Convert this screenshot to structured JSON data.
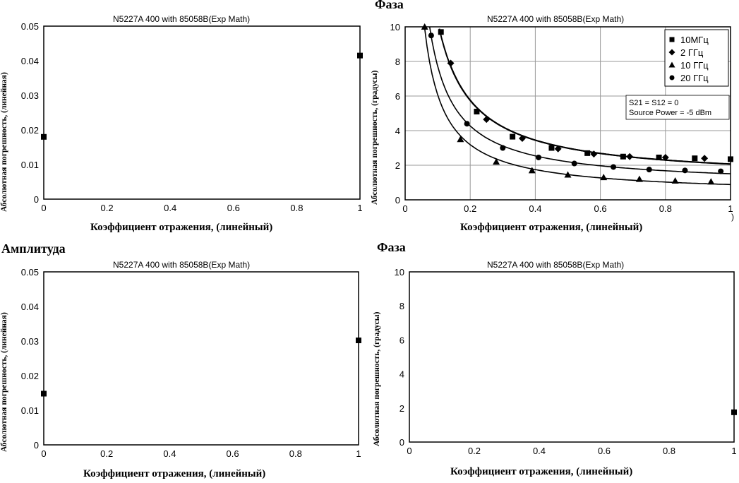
{
  "sections": {
    "top_left_title": "",
    "top_right_title": "Фаза",
    "bottom_left_title": "Амплитуда",
    "bottom_right_title": "Фаза",
    "stray_mark": ")"
  },
  "chart_data": [
    {
      "type": "scatter",
      "title": "N5227A 400 with 85058B(Exp Math)",
      "xlabel": "Коэффициент отражения, (линейный)",
      "ylabel": "Абсолютная погрешность, (линейная)",
      "xlim": [
        0,
        1
      ],
      "ylim": [
        0,
        0.05
      ],
      "xticks": [
        "0",
        "0.2",
        "0.4",
        "0.6",
        "0.8",
        "1"
      ],
      "yticks": [
        "0",
        "0.01",
        "0.02",
        "0.03",
        "0.04",
        "0.05"
      ],
      "grid": false,
      "series": [
        {
          "marker": "square",
          "x": [
            0,
            1
          ],
          "y": [
            0.018,
            0.0415
          ]
        }
      ]
    },
    {
      "type": "line",
      "title": "N5227A 400 with 85058B(Exp Math)",
      "xlabel": "Коэффициент отражения, (линейный)",
      "ylabel": "Абсолютная погрешность, (градусы)",
      "xlim": [
        0,
        1
      ],
      "ylim": [
        0,
        10
      ],
      "xticks": [
        "0",
        "0.2",
        "0.4",
        "0.6",
        "0.8",
        "1"
      ],
      "yticks": [
        "0",
        "2",
        "4",
        "6",
        "8",
        "10"
      ],
      "grid": true,
      "legend_position": "top-right",
      "annotations": [
        "S21 = S12 = 0",
        "Source Power = -5 dBm"
      ],
      "series": [
        {
          "name": "10МГц",
          "marker": "square",
          "x": [
            0.11,
            0.22,
            0.33,
            0.45,
            0.56,
            0.67,
            0.78,
            0.89,
            1.0
          ],
          "y": [
            9.7,
            5.1,
            3.65,
            3.0,
            2.7,
            2.5,
            2.45,
            2.4,
            2.35
          ]
        },
        {
          "name": "2 ГГц",
          "marker": "diamond",
          "x": [
            0.14,
            0.25,
            0.36,
            0.47,
            0.58,
            0.69,
            0.8,
            0.92
          ],
          "y": [
            7.9,
            4.65,
            3.55,
            2.95,
            2.65,
            2.5,
            2.45,
            2.4
          ]
        },
        {
          "name": "10 ГГц",
          "marker": "triangle",
          "x": [
            0.06,
            0.17,
            0.28,
            0.39,
            0.5,
            0.61,
            0.72,
            0.83,
            0.94
          ],
          "y": [
            10.0,
            3.5,
            2.2,
            1.7,
            1.45,
            1.3,
            1.2,
            1.1,
            1.05
          ]
        },
        {
          "name": "20 ГГц",
          "marker": "circle",
          "x": [
            0.08,
            0.19,
            0.3,
            0.41,
            0.52,
            0.64,
            0.75,
            0.86,
            0.97
          ],
          "y": [
            9.5,
            4.4,
            3.0,
            2.45,
            2.1,
            1.9,
            1.75,
            1.7,
            1.65
          ]
        }
      ]
    },
    {
      "type": "scatter",
      "title": "N5227A 400 with 85058B(Exp Math)",
      "xlabel": "Коэффициент отражения, (линейный)",
      "ylabel": "Абсолютная погрешность, (линейная)",
      "xlim": [
        0,
        1
      ],
      "ylim": [
        0,
        0.05
      ],
      "xticks": [
        "0",
        "0.2",
        "0.4",
        "0.6",
        "0.8",
        "1"
      ],
      "yticks": [
        "0",
        "0.01",
        "0.02",
        "0.03",
        "0.04",
        "0.05"
      ],
      "grid": false,
      "series": [
        {
          "marker": "square",
          "x": [
            0,
            1
          ],
          "y": [
            0.0148,
            0.0302
          ]
        }
      ]
    },
    {
      "type": "scatter",
      "title": "N5227A 400 with 85058B(Exp Math)",
      "xlabel": "Коэффициент отражения, (линейный)",
      "ylabel": "Абсолютная погрешность, (градусы)",
      "xlim": [
        0,
        1
      ],
      "ylim": [
        0,
        10
      ],
      "xticks": [
        "0",
        "0.2",
        "0.4",
        "0.6",
        "0.8",
        "1"
      ],
      "yticks": [
        "0",
        "2",
        "4",
        "6",
        "8",
        "10"
      ],
      "grid": false,
      "series": [
        {
          "marker": "square",
          "x": [
            1
          ],
          "y": [
            1.75
          ]
        }
      ]
    }
  ]
}
